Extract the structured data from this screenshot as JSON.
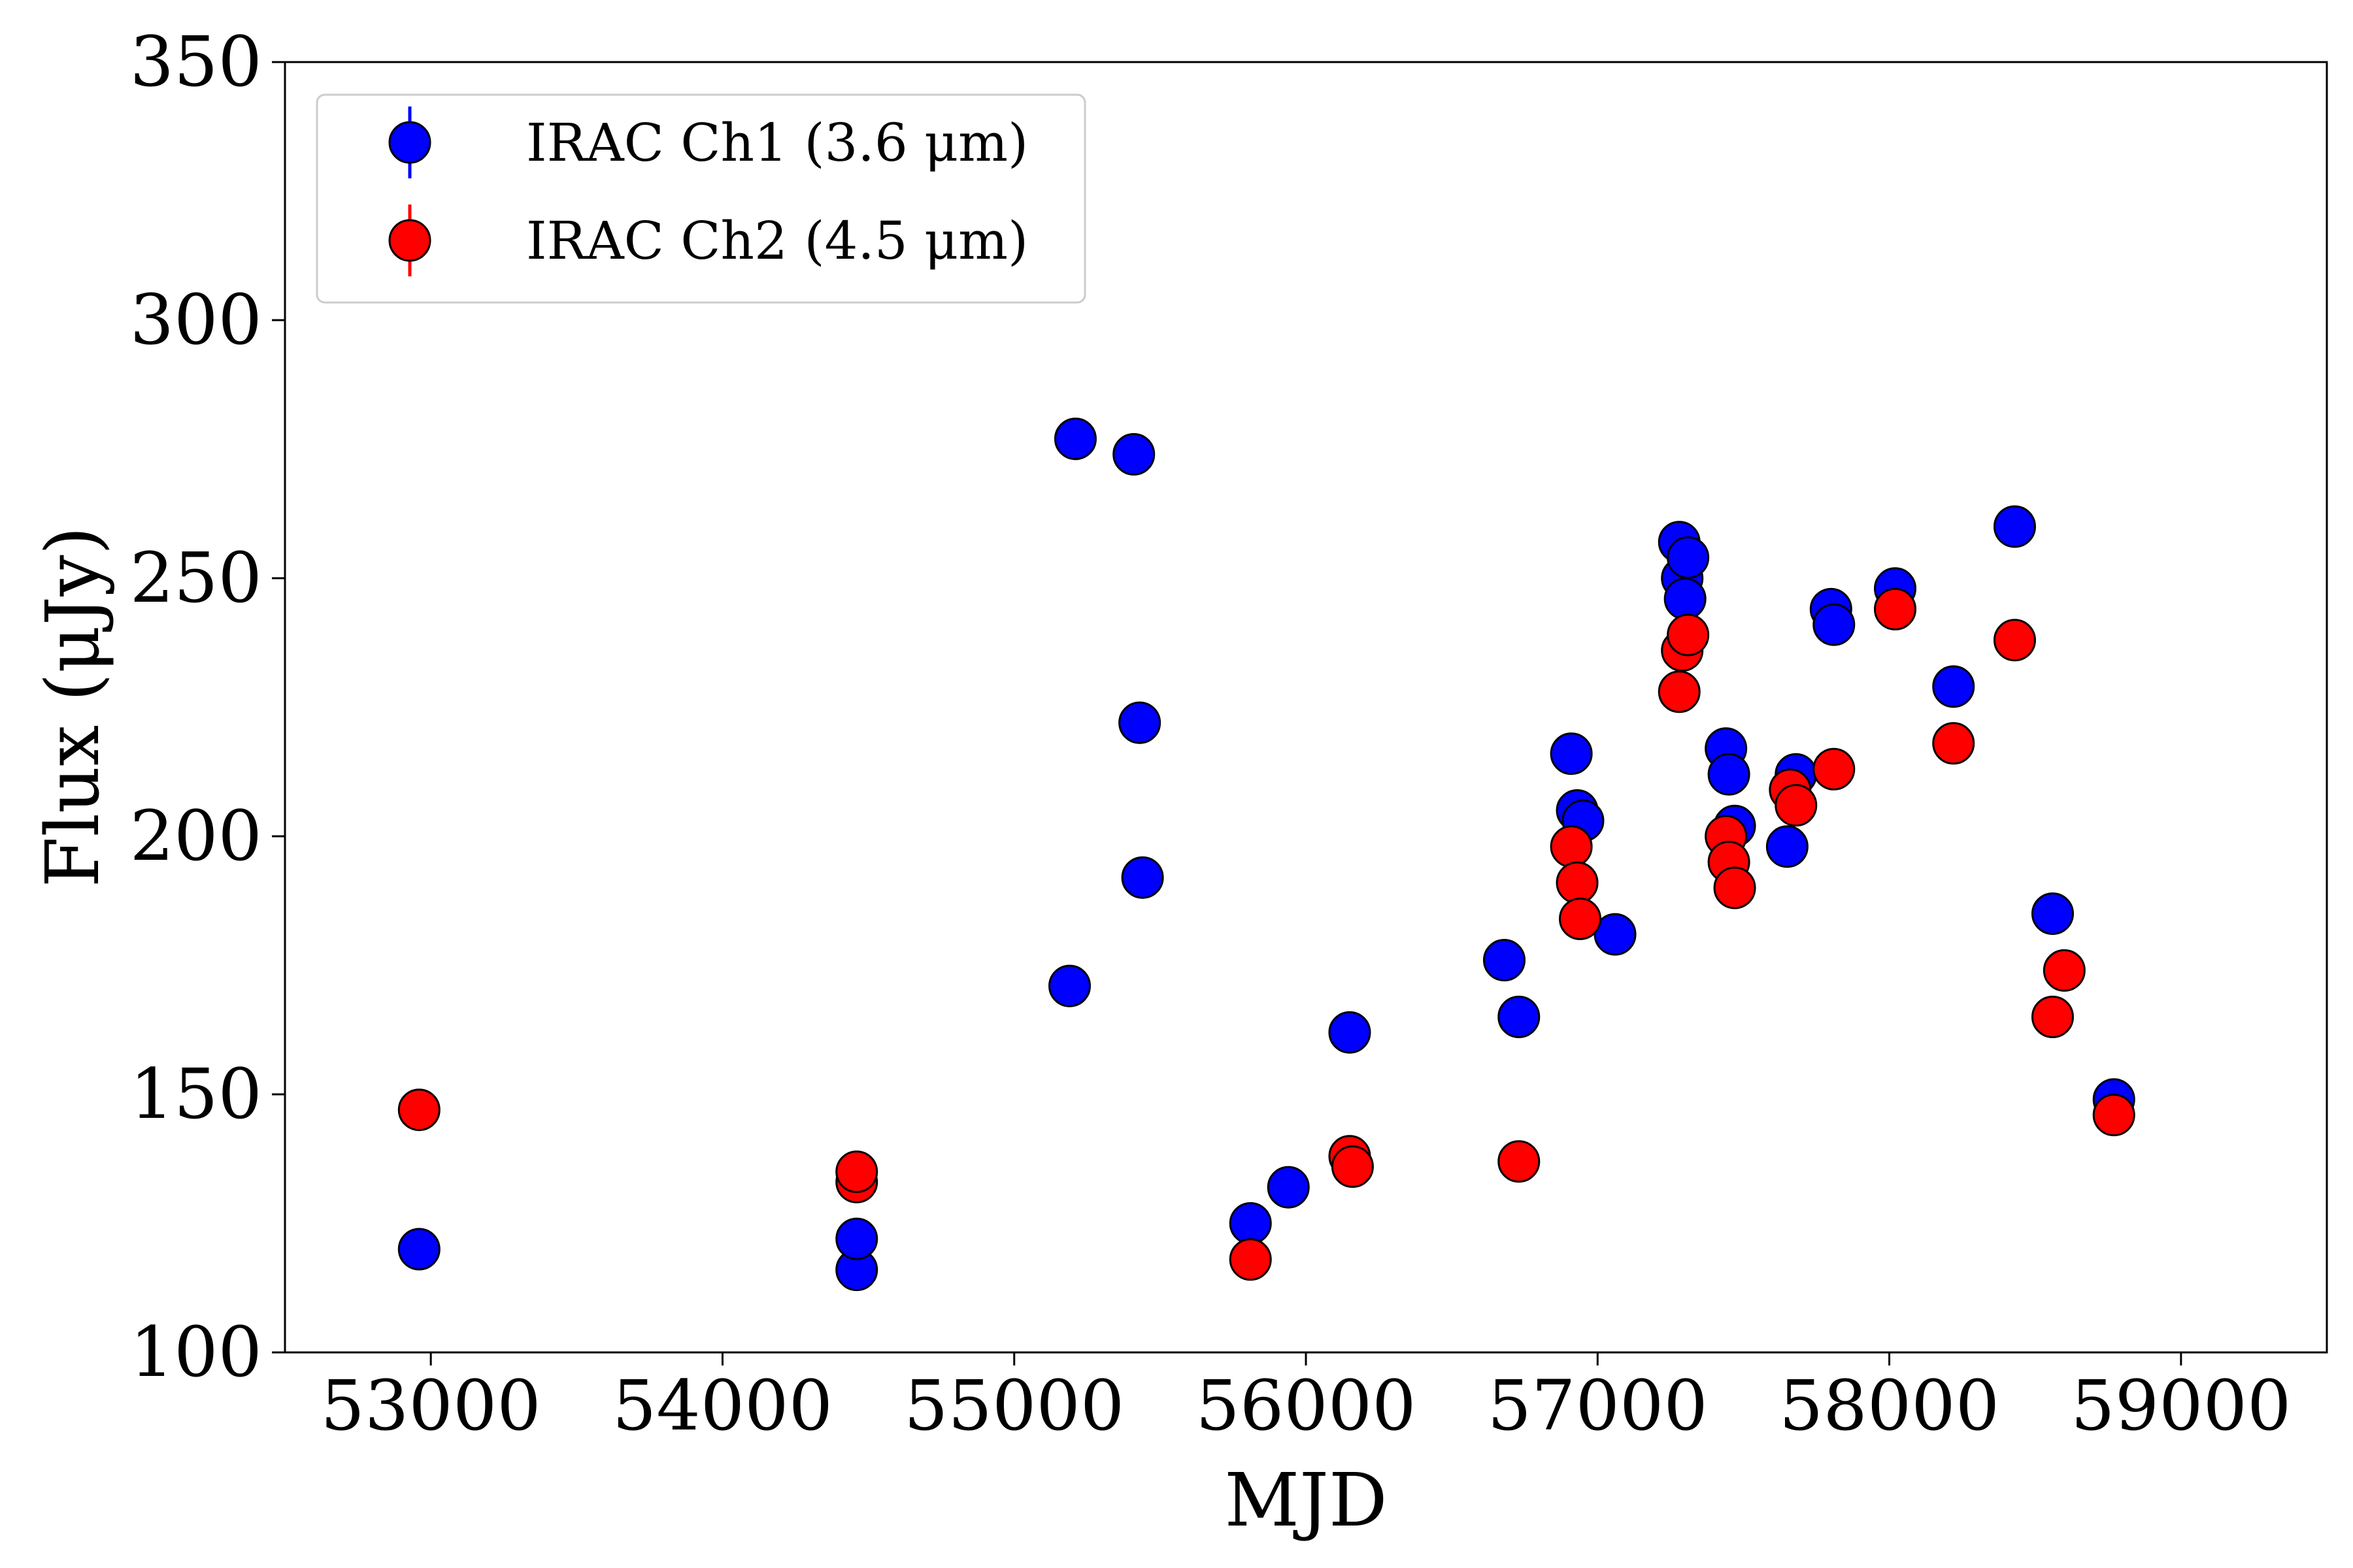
{
  "chart_data": {
    "type": "scatter",
    "title": "",
    "xlabel": "MJD",
    "ylabel": "Flux (μJy)",
    "xlim": [
      52500,
      59500
    ],
    "ylim": [
      100,
      350
    ],
    "xticks": [
      53000,
      54000,
      55000,
      56000,
      57000,
      58000,
      59000
    ],
    "yticks": [
      100,
      150,
      200,
      250,
      300,
      350
    ],
    "grid": false,
    "legend": "top-left",
    "series": [
      {
        "name": "IRAC Ch1 (3.6 μm)",
        "color": "#0000ff",
        "points": [
          [
            52960,
            120
          ],
          [
            54460,
            116
          ],
          [
            54460,
            122
          ],
          [
            55190,
            171
          ],
          [
            55210,
            277
          ],
          [
            55410,
            274
          ],
          [
            55430,
            222
          ],
          [
            55440,
            192
          ],
          [
            55810,
            125
          ],
          [
            55940,
            132
          ],
          [
            56150,
            162
          ],
          [
            56680,
            176
          ],
          [
            56730,
            165
          ],
          [
            56910,
            216
          ],
          [
            56930,
            205
          ],
          [
            56950,
            203
          ],
          [
            57060,
            181
          ],
          [
            57280,
            257
          ],
          [
            57290,
            250
          ],
          [
            57300,
            246
          ],
          [
            57310,
            254
          ],
          [
            57440,
            217
          ],
          [
            57450,
            212
          ],
          [
            57470,
            202
          ],
          [
            57650,
            198
          ],
          [
            57680,
            212
          ],
          [
            57800,
            244
          ],
          [
            57810,
            241
          ],
          [
            58020,
            248
          ],
          [
            58220,
            229
          ],
          [
            58430,
            260
          ],
          [
            58560,
            185
          ],
          [
            58770,
            149
          ]
        ]
      },
      {
        "name": "IRAC Ch2 (4.5 μm)",
        "color": "#ff0000",
        "points": [
          [
            52960,
            147
          ],
          [
            54460,
            133
          ],
          [
            54460,
            135
          ],
          [
            55810,
            118
          ],
          [
            56150,
            138
          ],
          [
            56160,
            136
          ],
          [
            56730,
            137
          ],
          [
            56910,
            198
          ],
          [
            56930,
            191
          ],
          [
            56940,
            184
          ],
          [
            57280,
            228
          ],
          [
            57290,
            236
          ],
          [
            57310,
            239
          ],
          [
            57440,
            200
          ],
          [
            57450,
            195
          ],
          [
            57470,
            190
          ],
          [
            57660,
            209
          ],
          [
            57680,
            206
          ],
          [
            57810,
            213
          ],
          [
            58020,
            244
          ],
          [
            58220,
            218
          ],
          [
            58430,
            238
          ],
          [
            58560,
            165
          ],
          [
            58600,
            174
          ],
          [
            58770,
            146
          ]
        ]
      }
    ]
  }
}
